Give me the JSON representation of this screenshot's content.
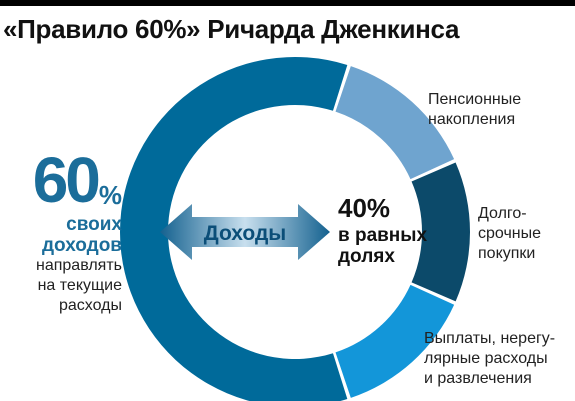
{
  "title": "«Правило 60%» Ричарда Дженкинса",
  "left": {
    "big_value": "60",
    "big_unit": "%",
    "line1": "своих",
    "line2": "доходов",
    "line3": "направлять",
    "line4": "на текущие",
    "line5": "расходы"
  },
  "center": {
    "arrow_label": "Доходы",
    "value": "40%",
    "text": "в равных\nдолях"
  },
  "colors": {
    "main": "#006a9a",
    "pension": "#6fa4cf",
    "longterm": "#0c4a6a",
    "payments": "#1396d9",
    "arrow_light": "#c8dfee",
    "arrow_dark": "#14618f"
  },
  "chart_data": {
    "type": "pie",
    "style": "donut",
    "series": [
      {
        "name": "60% своих доходов направлять на текущие расходы",
        "value": 60,
        "color": "#006a9a"
      },
      {
        "name": "Пенсионные накопления",
        "value": 13.33,
        "color": "#6fa4cf"
      },
      {
        "name": "Долгосрочные покупки",
        "value": 13.33,
        "color": "#0c4a6a"
      },
      {
        "name": "Выплаты, нерегулярные расходы и развлечения",
        "value": 13.34,
        "color": "#1396d9"
      }
    ]
  },
  "labels": {
    "pension": "Пенсионные\nнакопления",
    "longterm": "Долго-\nсрочные\nпокупки",
    "payments": "Выплаты, нерегу-\nлярные расходы\nи развлечения"
  }
}
